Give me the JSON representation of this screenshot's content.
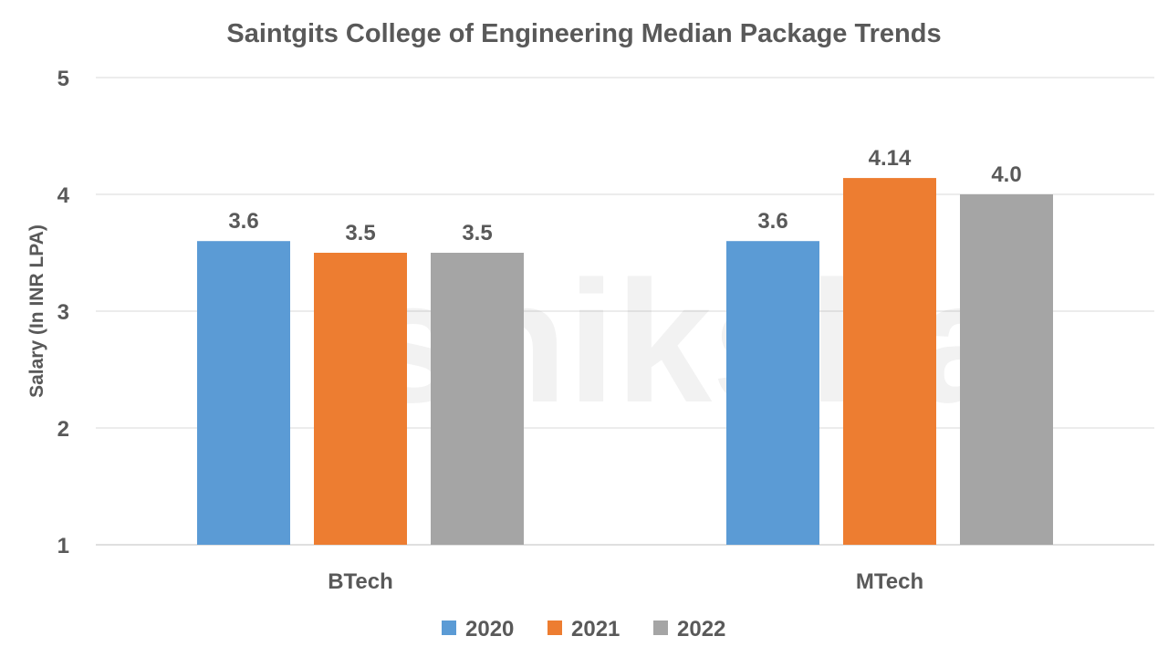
{
  "chart_data": {
    "type": "bar",
    "title": "Saintgits College of Engineering Median Package Trends",
    "xlabel": "",
    "ylabel": "Salary (In INR LPA)",
    "ylim": [
      1,
      5
    ],
    "yticks": [
      "1",
      "2",
      "3",
      "4",
      "5"
    ],
    "grid": true,
    "legend_position": "bottom",
    "categories": [
      "BTech",
      "MTech"
    ],
    "series": [
      {
        "name": "2020",
        "values": [
          3.6,
          3.6
        ],
        "labels": [
          "3.6",
          "3.6"
        ],
        "color": "#5B9BD5"
      },
      {
        "name": "2021",
        "values": [
          3.5,
          4.14
        ],
        "labels": [
          "3.5",
          "4.14"
        ],
        "color": "#ED7D31"
      },
      {
        "name": "2022",
        "values": [
          3.5,
          4.0
        ],
        "labels": [
          "3.5",
          "4.0"
        ],
        "color": "#A5A5A5"
      }
    ]
  },
  "watermark": "shiksha"
}
